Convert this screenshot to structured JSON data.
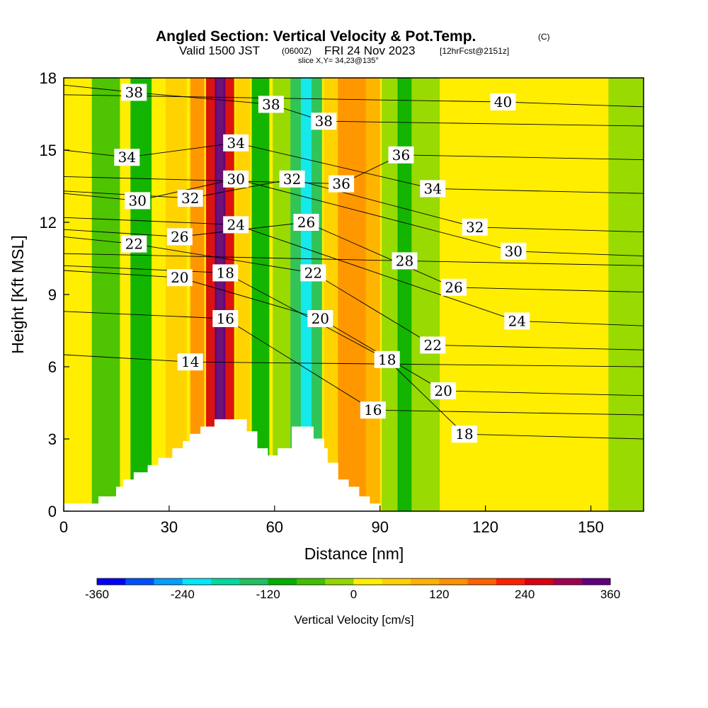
{
  "title": {
    "main": "Angled Section: Vertical Velocity & Pot.Temp.",
    "main_unit": "(C)",
    "valid_prefix": "Valid 1500 JST",
    "valid_utc": "(0600Z)",
    "valid_date": "FRI 24 Nov 2023",
    "forecast": "[12hrFcst@2151z]",
    "slice": "slice X,Y= 34,23@135°"
  },
  "chart_data": {
    "type": "heatmap",
    "xlabel": "Distance [nm]",
    "ylabel": "Height [Kft MSL]",
    "xlim": [
      0,
      165
    ],
    "ylim": [
      0,
      18
    ],
    "x_ticks": [
      0,
      30,
      60,
      90,
      120,
      150
    ],
    "y_ticks": [
      0,
      3,
      6,
      9,
      12,
      15,
      18
    ],
    "colorbar": {
      "label": "Vertical Velocity [cm/s]",
      "min": -360,
      "max": 360,
      "step": 40,
      "tick_values": [
        -360,
        -240,
        -120,
        0,
        120,
        240,
        360
      ],
      "colors": [
        "#0000ff",
        "#0050ff",
        "#00a0ff",
        "#00e8ff",
        "#00d8a0",
        "#20c060",
        "#00b000",
        "#40c000",
        "#90d800",
        "#ffee00",
        "#ffd000",
        "#ffb000",
        "#ff9000",
        "#ff6000",
        "#ff2000",
        "#d80010",
        "#a00050",
        "#600080"
      ]
    },
    "velocity_bands": [
      {
        "x_center": 0,
        "x_width": 8,
        "value": 30
      },
      {
        "x_center": 12,
        "x_width": 8,
        "value": -55
      },
      {
        "x_center": 22,
        "x_width": 6,
        "value": -110
      },
      {
        "x_center": 32,
        "x_width": 6,
        "value": 40
      },
      {
        "x_center": 38,
        "x_width": 4,
        "value": 150
      },
      {
        "x_center": 42,
        "x_width": 3,
        "value": 250
      },
      {
        "x_center": 44.5,
        "x_width": 3,
        "value": 340
      },
      {
        "x_center": 47,
        "x_width": 3,
        "value": 250
      },
      {
        "x_center": 51,
        "x_width": 4,
        "value": 60
      },
      {
        "x_center": 56,
        "x_width": 5,
        "value": -110
      },
      {
        "x_center": 62,
        "x_width": 5,
        "value": -40
      },
      {
        "x_center": 66,
        "x_width": 3,
        "value": -140
      },
      {
        "x_center": 69,
        "x_width": 3,
        "value": -220
      },
      {
        "x_center": 72,
        "x_width": 3,
        "value": -150
      },
      {
        "x_center": 76,
        "x_width": 4,
        "value": 40
      },
      {
        "x_center": 80,
        "x_width": 4,
        "value": 120
      },
      {
        "x_center": 84,
        "x_width": 4,
        "value": 155
      },
      {
        "x_center": 88,
        "x_width": 4,
        "value": 90
      },
      {
        "x_center": 93,
        "x_width": 5,
        "value": -40
      },
      {
        "x_center": 97,
        "x_width": 4,
        "value": -110
      },
      {
        "x_center": 103,
        "x_width": 8,
        "value": -40
      },
      {
        "x_center": 115,
        "x_width": 12,
        "value": 30
      },
      {
        "x_center": 130,
        "x_width": 12,
        "value": 5
      },
      {
        "x_center": 145,
        "x_width": 12,
        "value": 25
      },
      {
        "x_center": 160,
        "x_width": 10,
        "value": -30
      }
    ],
    "terrain": [
      [
        0,
        0.3
      ],
      [
        10,
        0.3
      ],
      [
        10,
        0.6
      ],
      [
        15,
        0.6
      ],
      [
        15,
        1.0
      ],
      [
        17,
        1.0
      ],
      [
        17,
        1.3
      ],
      [
        20,
        1.3
      ],
      [
        20,
        1.6
      ],
      [
        24,
        1.6
      ],
      [
        24,
        1.9
      ],
      [
        27,
        1.9
      ],
      [
        27,
        2.2
      ],
      [
        31,
        2.2
      ],
      [
        31,
        2.6
      ],
      [
        34,
        2.6
      ],
      [
        34,
        2.9
      ],
      [
        36,
        2.9
      ],
      [
        36,
        3.2
      ],
      [
        39,
        3.2
      ],
      [
        39,
        3.5
      ],
      [
        43,
        3.5
      ],
      [
        43,
        3.8
      ],
      [
        52,
        3.8
      ],
      [
        52,
        3.3
      ],
      [
        55,
        3.3
      ],
      [
        55,
        2.6
      ],
      [
        58,
        2.6
      ],
      [
        58,
        2.3
      ],
      [
        61,
        2.3
      ],
      [
        61,
        2.6
      ],
      [
        65,
        2.6
      ],
      [
        65,
        3.5
      ],
      [
        71,
        3.5
      ],
      [
        71,
        3.0
      ],
      [
        74,
        3.0
      ],
      [
        74,
        2.6
      ],
      [
        75,
        2.6
      ],
      [
        75,
        2.0
      ],
      [
        78,
        2.0
      ],
      [
        78,
        1.3
      ],
      [
        81,
        1.3
      ],
      [
        81,
        1.0
      ],
      [
        84,
        1.0
      ],
      [
        84,
        0.6
      ],
      [
        87,
        0.6
      ],
      [
        87,
        0.3
      ],
      [
        90,
        0.3
      ],
      [
        90,
        0
      ],
      [
        0,
        0
      ]
    ],
    "theta_contours": [
      {
        "value": 14,
        "label_x": 36,
        "label_y": 6.2
      },
      {
        "value": 16,
        "label_x": 46,
        "label_y": 8.0
      },
      {
        "value": 16,
        "label_x": 88,
        "label_y": 4.2
      },
      {
        "value": 18,
        "label_x": 46,
        "label_y": 9.9
      },
      {
        "value": 18,
        "label_x": 92,
        "label_y": 6.3
      },
      {
        "value": 18,
        "label_x": 114,
        "label_y": 3.2
      },
      {
        "value": 20,
        "label_x": 33,
        "label_y": 9.7
      },
      {
        "value": 20,
        "label_x": 73,
        "label_y": 8.0
      },
      {
        "value": 20,
        "label_x": 108,
        "label_y": 5.0
      },
      {
        "value": 22,
        "label_x": 20,
        "label_y": 11.1
      },
      {
        "value": 22,
        "label_x": 71,
        "label_y": 9.9
      },
      {
        "value": 22,
        "label_x": 105,
        "label_y": 6.9
      },
      {
        "value": 24,
        "label_x": 49,
        "label_y": 11.9
      },
      {
        "value": 24,
        "label_x": 129,
        "label_y": 7.9
      },
      {
        "value": 26,
        "label_x": 33,
        "label_y": 11.4
      },
      {
        "value": 26,
        "label_x": 69,
        "label_y": 12.0
      },
      {
        "value": 26,
        "label_x": 111,
        "label_y": 9.3
      },
      {
        "value": 28,
        "label_x": 97,
        "label_y": 10.4
      },
      {
        "value": 30,
        "label_x": 21,
        "label_y": 12.9
      },
      {
        "value": 30,
        "label_x": 49,
        "label_y": 13.8
      },
      {
        "value": 30,
        "label_x": 128,
        "label_y": 10.8
      },
      {
        "value": 32,
        "label_x": 36,
        "label_y": 13.0
      },
      {
        "value": 32,
        "label_x": 65,
        "label_y": 13.8
      },
      {
        "value": 32,
        "label_x": 117,
        "label_y": 11.8
      },
      {
        "value": 34,
        "label_x": 18,
        "label_y": 14.7
      },
      {
        "value": 34,
        "label_x": 49,
        "label_y": 15.3
      },
      {
        "value": 34,
        "label_x": 105,
        "label_y": 13.4
      },
      {
        "value": 36,
        "label_x": 79,
        "label_y": 13.6
      },
      {
        "value": 36,
        "label_x": 96,
        "label_y": 14.8
      },
      {
        "value": 38,
        "label_x": 20,
        "label_y": 17.4
      },
      {
        "value": 38,
        "label_x": 59,
        "label_y": 16.9
      },
      {
        "value": 38,
        "label_x": 74,
        "label_y": 16.2
      },
      {
        "value": 40,
        "label_x": 125,
        "label_y": 17.0
      }
    ]
  }
}
